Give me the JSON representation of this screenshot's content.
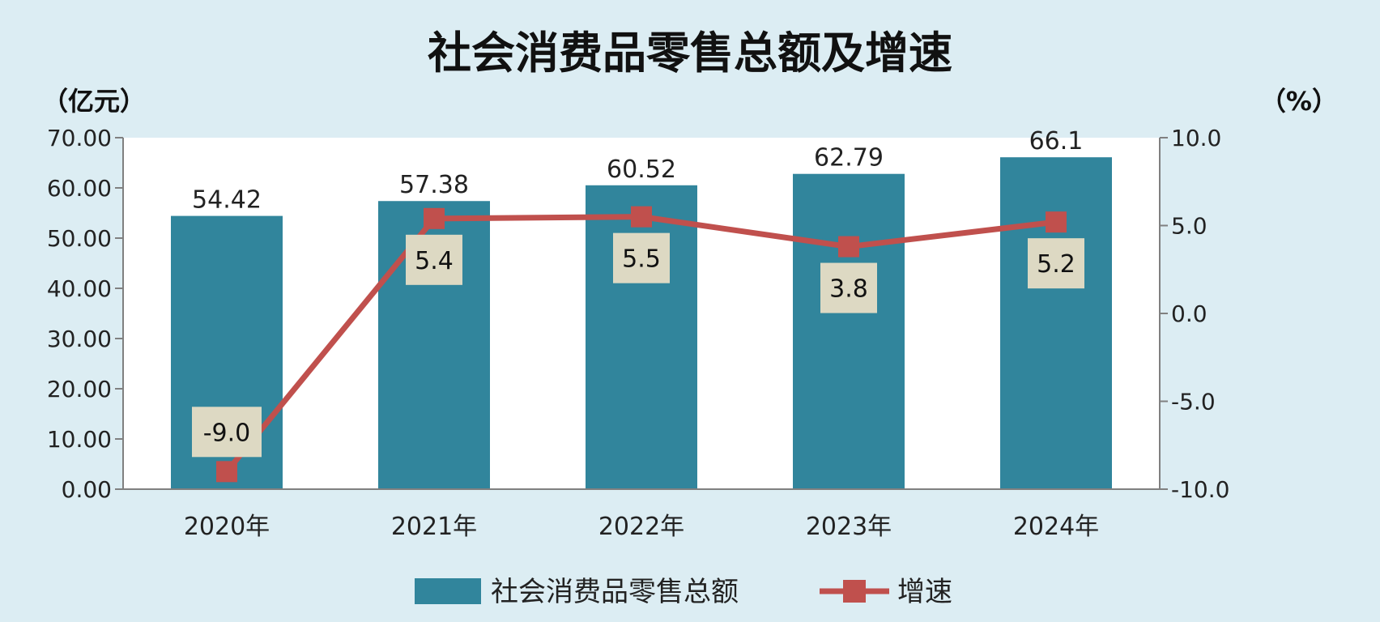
{
  "chart_data": {
    "type": "bar",
    "title": "社会消费品零售总额及增速",
    "left_unit": "（亿元）",
    "right_unit": "（%）",
    "categories": [
      "2020年",
      "2021年",
      "2022年",
      "2023年",
      "2024年"
    ],
    "series": [
      {
        "name": "社会消费品零售总额",
        "type": "bar",
        "axis": "left",
        "values": [
          54.42,
          57.38,
          60.52,
          62.79,
          66.1
        ],
        "labels": [
          "54.42",
          "57.38",
          "60.52",
          "62.79",
          "66.1"
        ],
        "color": "#31859c"
      },
      {
        "name": "增速",
        "type": "line",
        "axis": "right",
        "values": [
          -9.0,
          5.4,
          5.5,
          3.8,
          5.2
        ],
        "labels": [
          "-9.0",
          "5.4",
          "5.5",
          "3.8",
          "5.2"
        ],
        "color": "#c0504d",
        "label_box_color": "#ddd9c3"
      }
    ],
    "left_axis": {
      "ylim": [
        0,
        70
      ],
      "ticks": [
        "0.00",
        "10.00",
        "20.00",
        "30.00",
        "40.00",
        "50.00",
        "60.00",
        "70.00"
      ]
    },
    "right_axis": {
      "ylim": [
        -10,
        10
      ],
      "ticks": [
        "-10.0",
        "-5.0",
        "0.0",
        "5.0",
        "10.0"
      ]
    },
    "grid": false,
    "legend_position": "bottom",
    "background_color": "#dcedf3",
    "plot_background_color": "#ffffff"
  }
}
